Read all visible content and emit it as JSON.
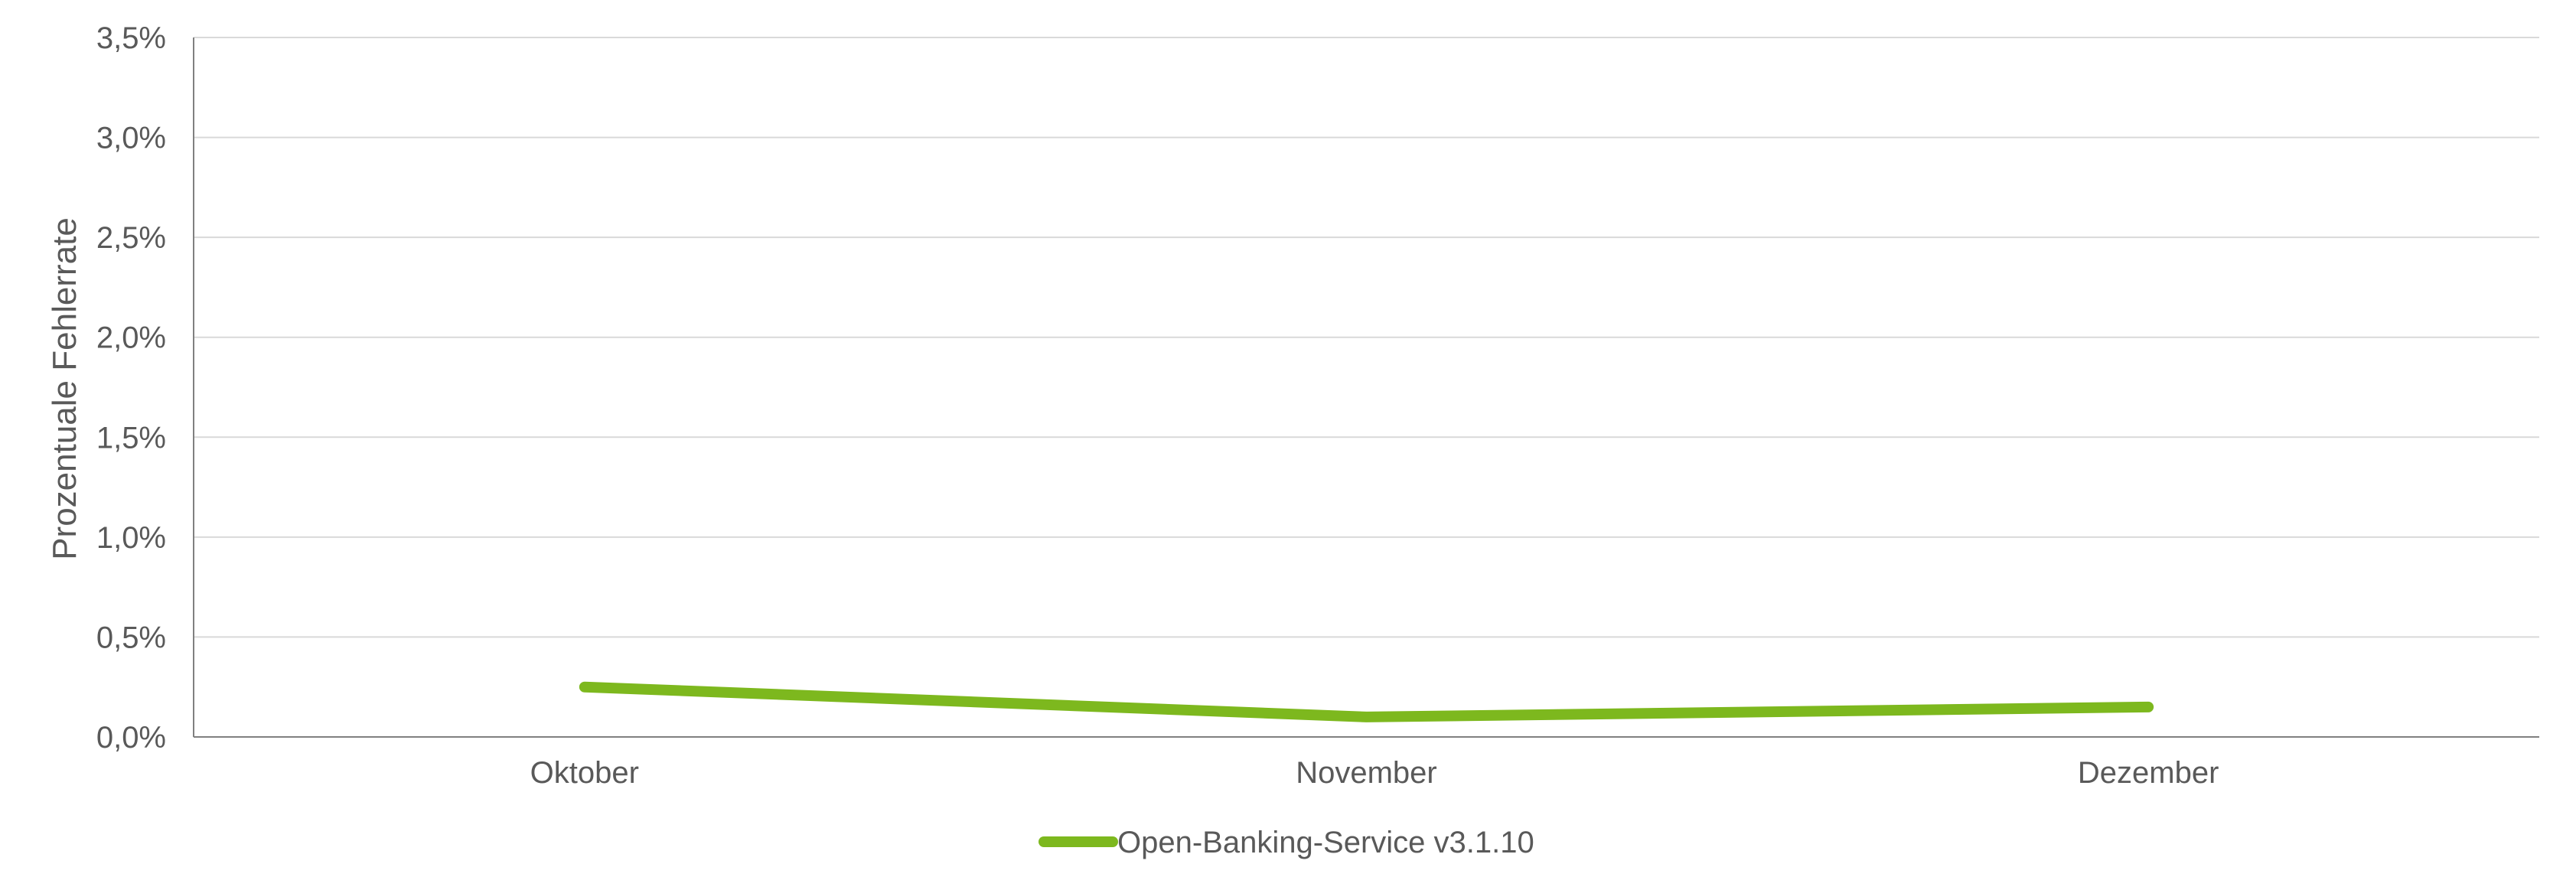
{
  "chart_data": {
    "type": "line",
    "categories": [
      "Oktober",
      "November",
      "Dezember"
    ],
    "series": [
      {
        "name": "Open-Banking-Service v3.1.10",
        "values": [
          0.0025,
          0.001,
          0.0015
        ],
        "color": "#7db81e"
      }
    ],
    "ylabel": "Prozentuale Fehlerrate",
    "xlabel": "",
    "ylim": [
      0,
      0.035
    ],
    "yticks": [
      "0,0%",
      "0,5%",
      "1,0%",
      "1,5%",
      "2,0%",
      "2,5%",
      "3,0%",
      "3,5%"
    ],
    "grid": true,
    "legend_position": "bottom",
    "colors": {
      "grid": "#d9d9d9",
      "axis": "#808080",
      "text": "#595959"
    }
  }
}
